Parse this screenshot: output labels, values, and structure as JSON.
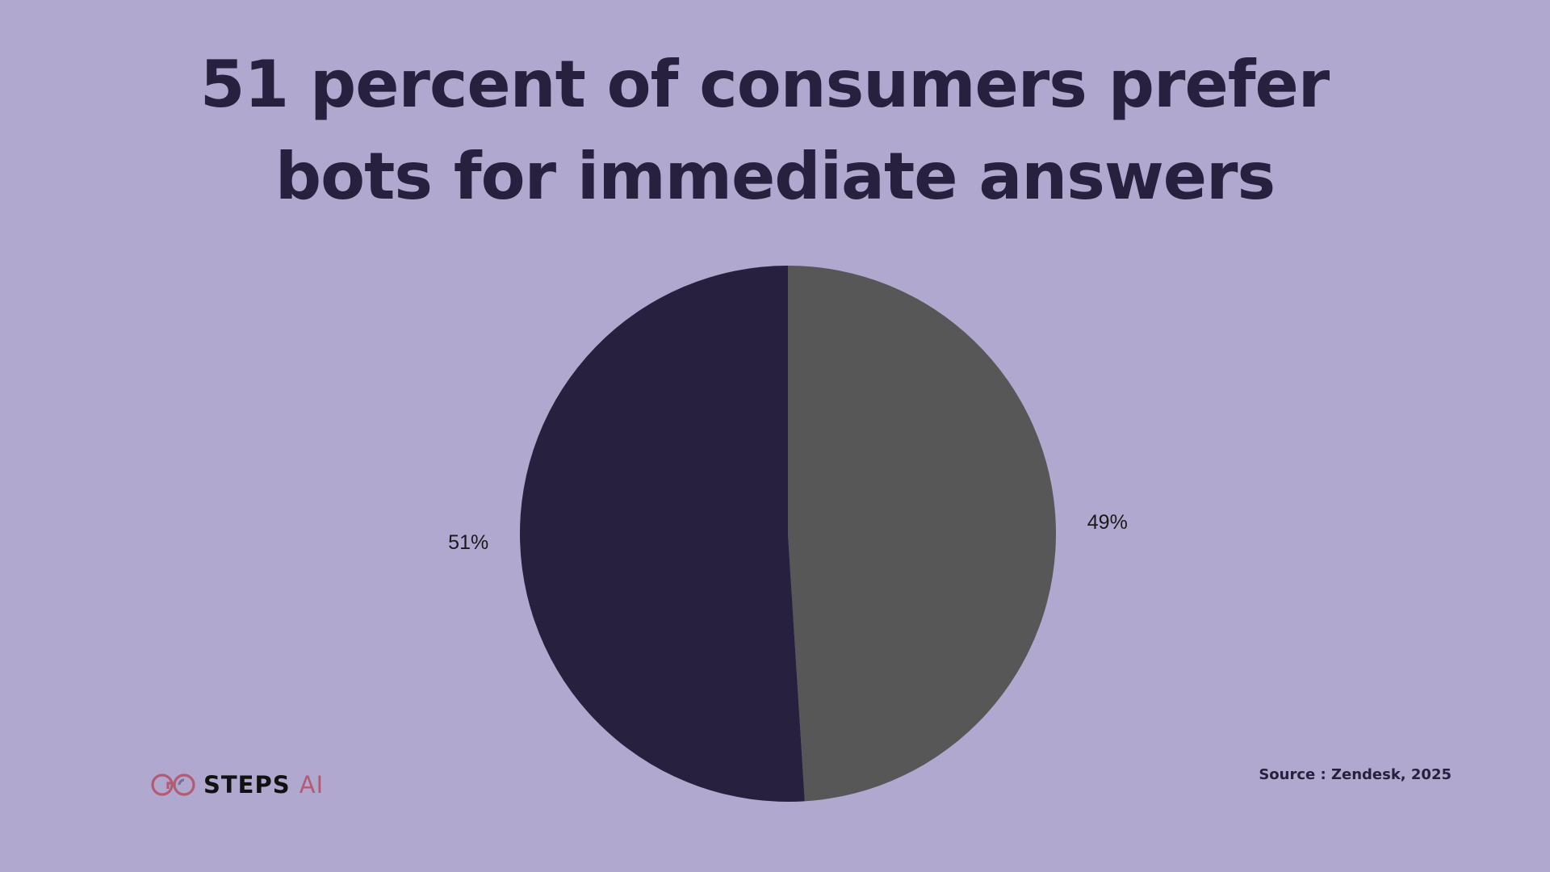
{
  "title": {
    "line1": "51 percent of consumers prefer",
    "line2": "bots for immediate answers"
  },
  "chart_data": {
    "type": "pie",
    "title": "51 percent of consumers prefer bots for immediate answers",
    "values": [
      49,
      51
    ],
    "labels": [
      "49%",
      "51%"
    ],
    "colors": [
      "#575757",
      "#27213f"
    ],
    "start": "12 o'clock",
    "direction": "clockwise",
    "legend": "none"
  },
  "source": "Source : Zendesk, 2025",
  "logo": {
    "name": "STEPS",
    "accent": "AI"
  },
  "colors": {
    "background": "#b0a8cf",
    "title": "#27213f",
    "logo_accent": "#b35a74",
    "logo_text": "#111111"
  }
}
